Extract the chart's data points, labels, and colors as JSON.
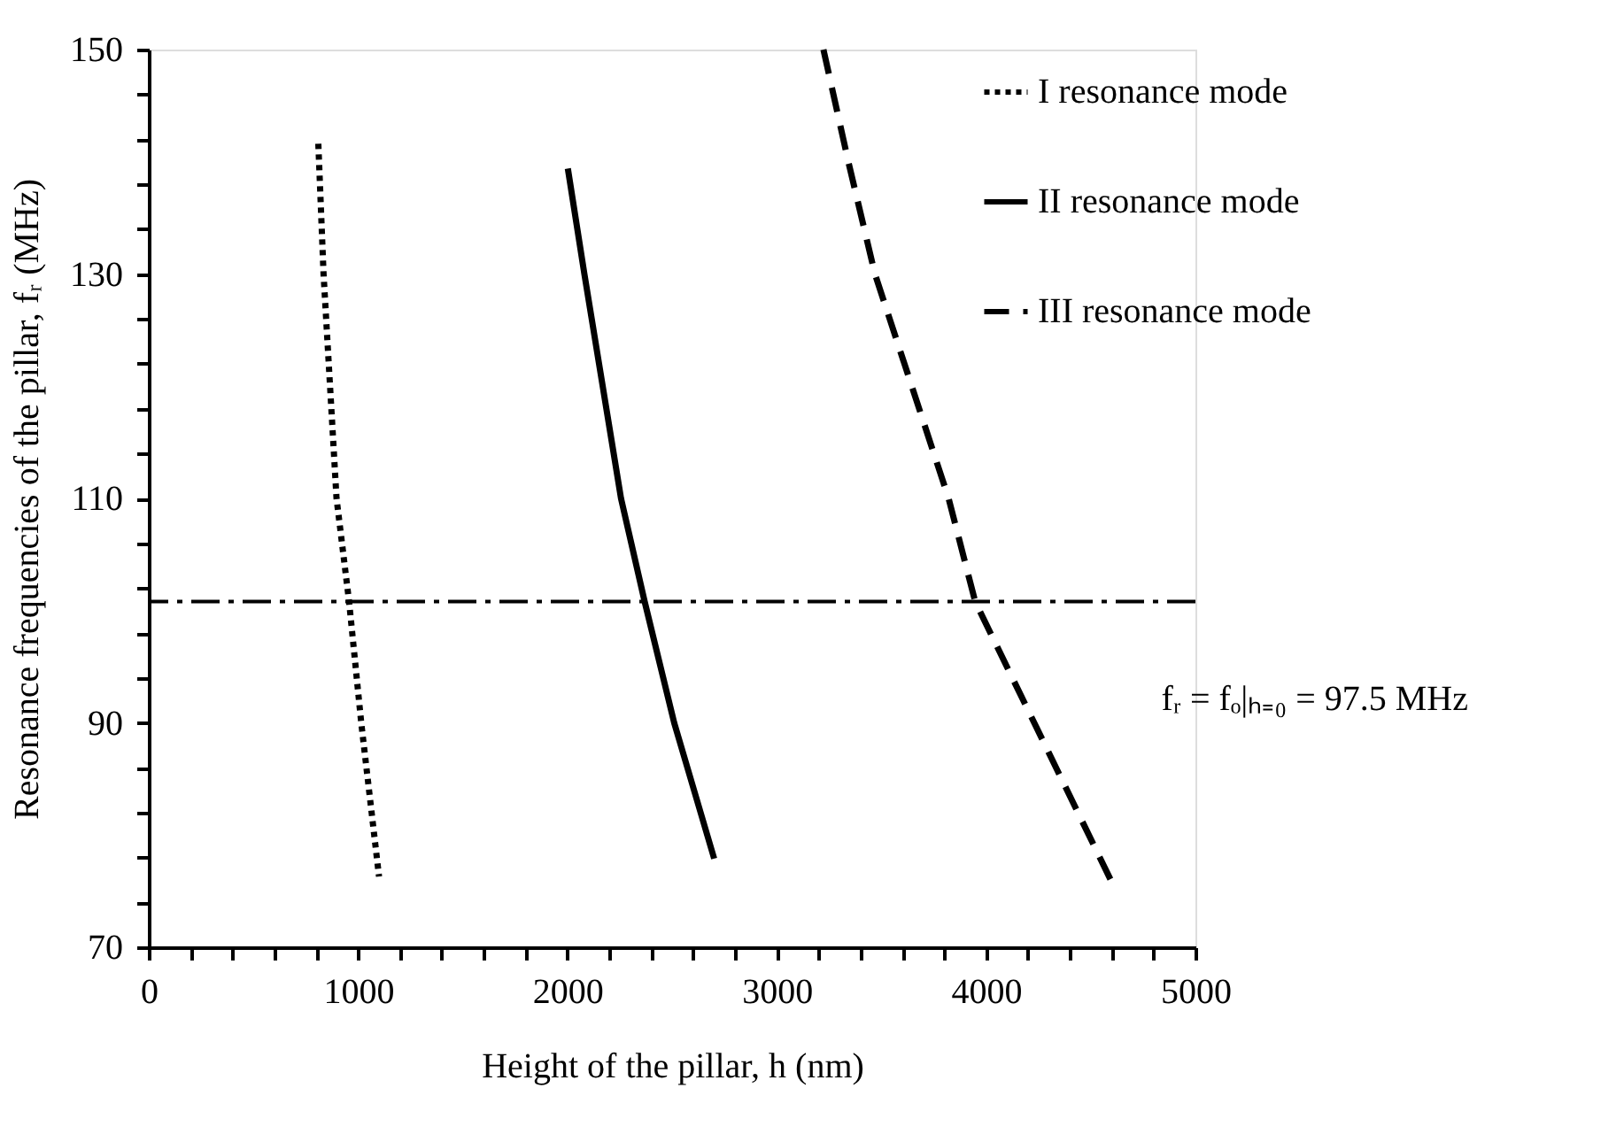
{
  "chart_data": {
    "type": "line",
    "xlabel": "Height of the pillar, h (nm)",
    "ylabel": "Resonance frequencies of the pillar, fᵣ (MHz)",
    "series": [
      {
        "name": "I resonance mode",
        "color": "#000000",
        "line_style": "dotted",
        "x": [
          810,
          835,
          897,
          957,
          1015,
          1100
        ],
        "values": [
          141.6,
          130,
          110,
          100.8,
          90,
          76.3
        ]
      },
      {
        "name": "II resonance mode",
        "color": "#000000",
        "line_style": "solid",
        "x": [
          2002,
          2081,
          2256,
          2369,
          2510,
          2701
        ],
        "values": [
          139.4,
          130,
          110,
          100.8,
          90,
          77.9
        ]
      },
      {
        "name": "III resonance mode",
        "color": "#000000",
        "line_style": "dashed",
        "x": [
          3223,
          3342,
          3469,
          3821,
          3948,
          4230,
          4611
        ],
        "values": [
          150,
          140,
          130,
          110,
          100.8,
          90,
          75.4
        ]
      }
    ],
    "ref_lines": [
      {
        "axis": "y",
        "value": 100.8,
        "color": "#000000",
        "line_style": "dashdot"
      }
    ],
    "annotations": [
      "fᵣ = fₒ|ₕ₌₀ = 97.5 MHz"
    ],
    "xlim": [
      0,
      5000
    ],
    "xticks": [
      0,
      {
        "value": 200,
        "label": null
      },
      {
        "value": 400,
        "label": null
      },
      {
        "value": 600,
        "label": null
      },
      {
        "value": 800,
        "label": null
      },
      1000,
      {
        "value": 1200,
        "label": null
      },
      {
        "value": 1400,
        "label": null
      },
      {
        "value": 1600,
        "label": null
      },
      {
        "value": 1800,
        "label": null
      },
      2000,
      {
        "value": 2200,
        "label": null
      },
      {
        "value": 2400,
        "label": null
      },
      {
        "value": 2600,
        "label": null
      },
      {
        "value": 2800,
        "label": null
      },
      3000,
      {
        "value": 3200,
        "label": null
      },
      {
        "value": 3400,
        "label": null
      },
      {
        "value": 3600,
        "label": null
      },
      {
        "value": 3800,
        "label": null
      },
      4000,
      {
        "value": 4200,
        "label": null
      },
      {
        "value": 4400,
        "label": null
      },
      {
        "value": 4600,
        "label": null
      },
      {
        "value": 4800,
        "label": null
      },
      5000
    ],
    "ylim": [
      70,
      150
    ],
    "yticks": [
      70,
      {
        "value": 74,
        "label": null
      },
      {
        "value": 78,
        "label": null
      },
      {
        "value": 82,
        "label": null
      },
      {
        "value": 86,
        "label": null
      },
      90,
      {
        "value": 94,
        "label": null
      },
      {
        "value": 98,
        "label": null
      },
      {
        "value": 102,
        "label": null
      },
      {
        "value": 106,
        "label": null
      },
      110,
      {
        "value": 114,
        "label": null
      },
      {
        "value": 118,
        "label": null
      },
      {
        "value": 122,
        "label": null
      },
      {
        "value": 126,
        "label": null
      },
      130,
      {
        "value": 134,
        "label": null
      },
      {
        "value": 138,
        "label": null
      },
      {
        "value": 142,
        "label": null
      },
      {
        "value": 146,
        "label": null
      },
      150
    ],
    "grid": false,
    "legend": "top right",
    "marker": "none"
  }
}
